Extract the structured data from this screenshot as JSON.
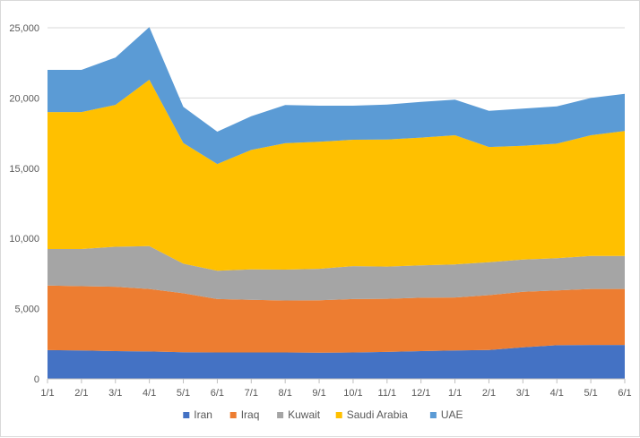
{
  "chart_data": {
    "type": "area",
    "stacked": true,
    "categories": [
      "1/1",
      "2/1",
      "3/1",
      "4/1",
      "5/1",
      "6/1",
      "7/1",
      "8/1",
      "9/1",
      "10/1",
      "11/1",
      "12/1",
      "1/1",
      "2/1",
      "3/1",
      "4/1",
      "5/1",
      "6/1"
    ],
    "series": [
      {
        "name": "Iran",
        "color": "#4472C4",
        "values": [
          2050,
          2020,
          1980,
          1950,
          1900,
          1880,
          1880,
          1880,
          1870,
          1880,
          1920,
          1980,
          2020,
          2060,
          2250,
          2400,
          2420,
          2420
        ]
      },
      {
        "name": "Iraq",
        "color": "#ED7D31",
        "values": [
          4600,
          4580,
          4580,
          4450,
          4200,
          3800,
          3750,
          3700,
          3720,
          3800,
          3780,
          3800,
          3780,
          3900,
          3950,
          3900,
          3980,
          3980
        ]
      },
      {
        "name": "Kuwait",
        "color": "#A5A5A5",
        "values": [
          2600,
          2650,
          2850,
          3050,
          2100,
          2020,
          2170,
          2200,
          2250,
          2350,
          2300,
          2300,
          2350,
          2350,
          2300,
          2300,
          2350,
          2350
        ]
      },
      {
        "name": "Saudi Arabia",
        "color": "#FFC000",
        "values": [
          9750,
          9750,
          10100,
          11850,
          8600,
          7600,
          8500,
          9000,
          9050,
          9000,
          9050,
          9100,
          9200,
          8200,
          8100,
          8150,
          8600,
          8900
        ]
      },
      {
        "name": "UAE",
        "color": "#5B9BD5",
        "values": [
          3000,
          3000,
          3370,
          3750,
          2570,
          2300,
          2400,
          2720,
          2560,
          2420,
          2480,
          2540,
          2530,
          2580,
          2650,
          2650,
          2650,
          2650
        ]
      }
    ],
    "ylim": [
      0,
      25000
    ],
    "yticks": [
      0,
      5000,
      10000,
      15000,
      20000,
      25000
    ],
    "ytick_labels": [
      "0",
      "5,000",
      "10,000",
      "15,000",
      "20,000",
      "25,000"
    ],
    "grid": true,
    "legend_position": "bottom"
  }
}
